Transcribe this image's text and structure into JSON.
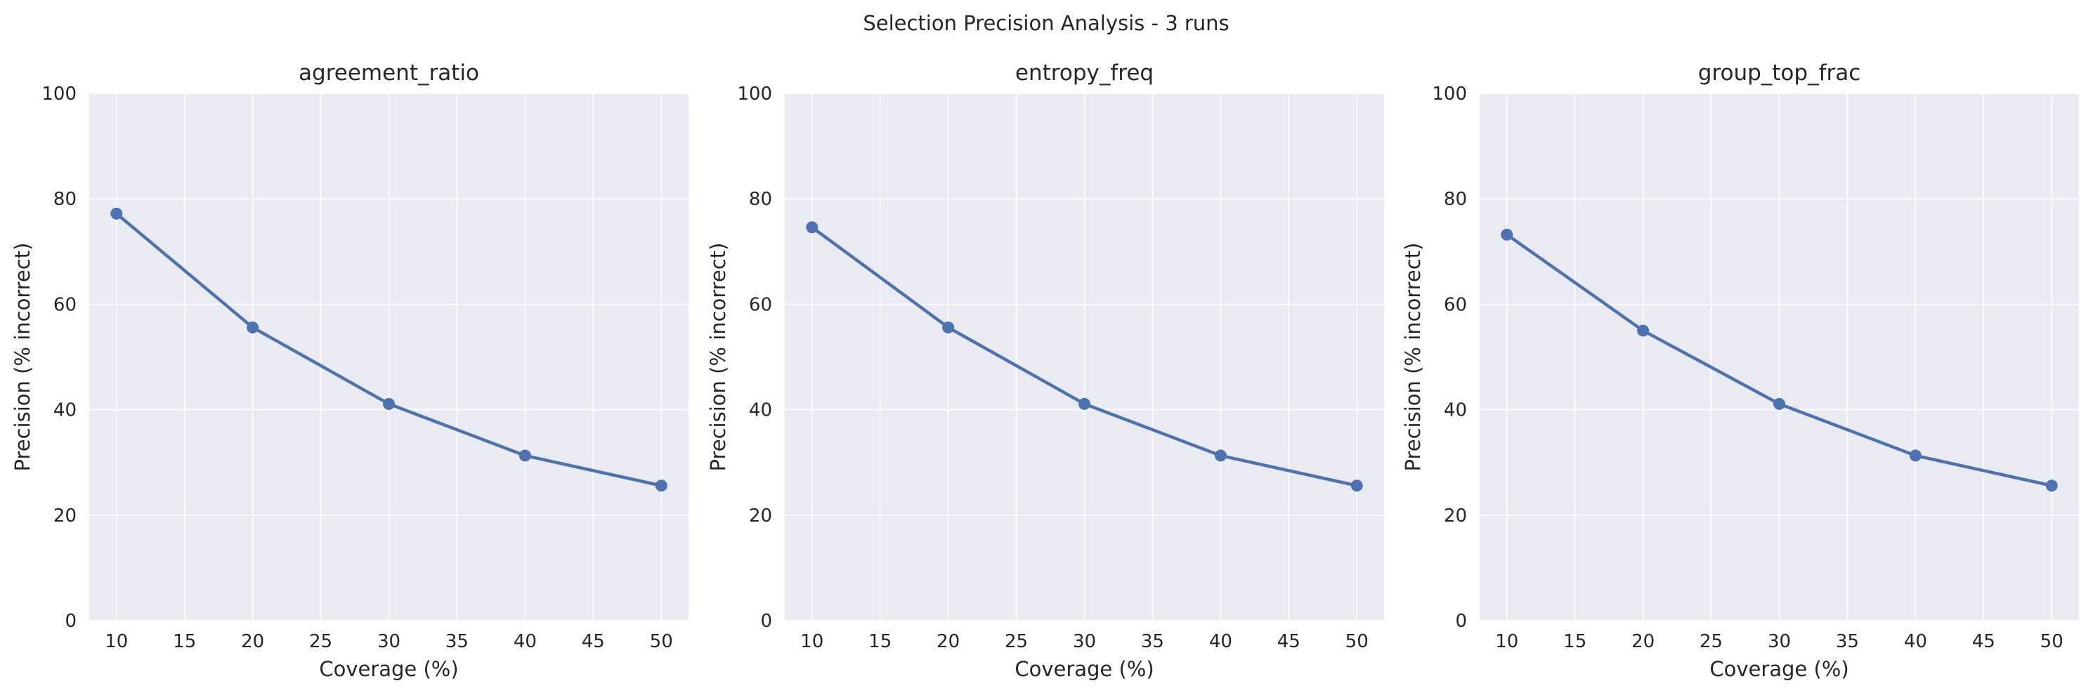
{
  "figure_title": "Selection Precision Analysis - 3 runs",
  "colors": {
    "series": "#4c72b0",
    "plot_background": "#eaeaf2",
    "grid": "#ffffff",
    "text": "#262626"
  },
  "chart_data": [
    {
      "type": "line",
      "title": "agreement_ratio",
      "xlabel": "Coverage (%)",
      "ylabel": "Precision (% incorrect)",
      "x": [
        10,
        20,
        30,
        40,
        50
      ],
      "y": [
        77.2,
        55.6,
        41.1,
        31.3,
        25.6
      ],
      "xticks": [
        10,
        15,
        20,
        25,
        30,
        35,
        40,
        45,
        50
      ],
      "yticks": [
        0,
        20,
        40,
        60,
        80,
        100
      ],
      "xlim": [
        8,
        52
      ],
      "ylim": [
        0,
        100
      ],
      "grid": true,
      "markers": true
    },
    {
      "type": "line",
      "title": "entropy_freq",
      "xlabel": "Coverage (%)",
      "ylabel": "Precision (% incorrect)",
      "x": [
        10,
        20,
        30,
        40,
        50
      ],
      "y": [
        74.6,
        55.6,
        41.1,
        31.3,
        25.6
      ],
      "xticks": [
        10,
        15,
        20,
        25,
        30,
        35,
        40,
        45,
        50
      ],
      "yticks": [
        0,
        20,
        40,
        60,
        80,
        100
      ],
      "xlim": [
        8,
        52
      ],
      "ylim": [
        0,
        100
      ],
      "grid": true,
      "markers": true
    },
    {
      "type": "line",
      "title": "group_top_frac",
      "xlabel": "Coverage (%)",
      "ylabel": "Precision (% incorrect)",
      "x": [
        10,
        20,
        30,
        40,
        50
      ],
      "y": [
        73.2,
        55.0,
        41.1,
        31.3,
        25.6
      ],
      "xticks": [
        10,
        15,
        20,
        25,
        30,
        35,
        40,
        45,
        50
      ],
      "yticks": [
        0,
        20,
        40,
        60,
        80,
        100
      ],
      "xlim": [
        8,
        52
      ],
      "ylim": [
        0,
        100
      ],
      "grid": true,
      "markers": true
    }
  ]
}
